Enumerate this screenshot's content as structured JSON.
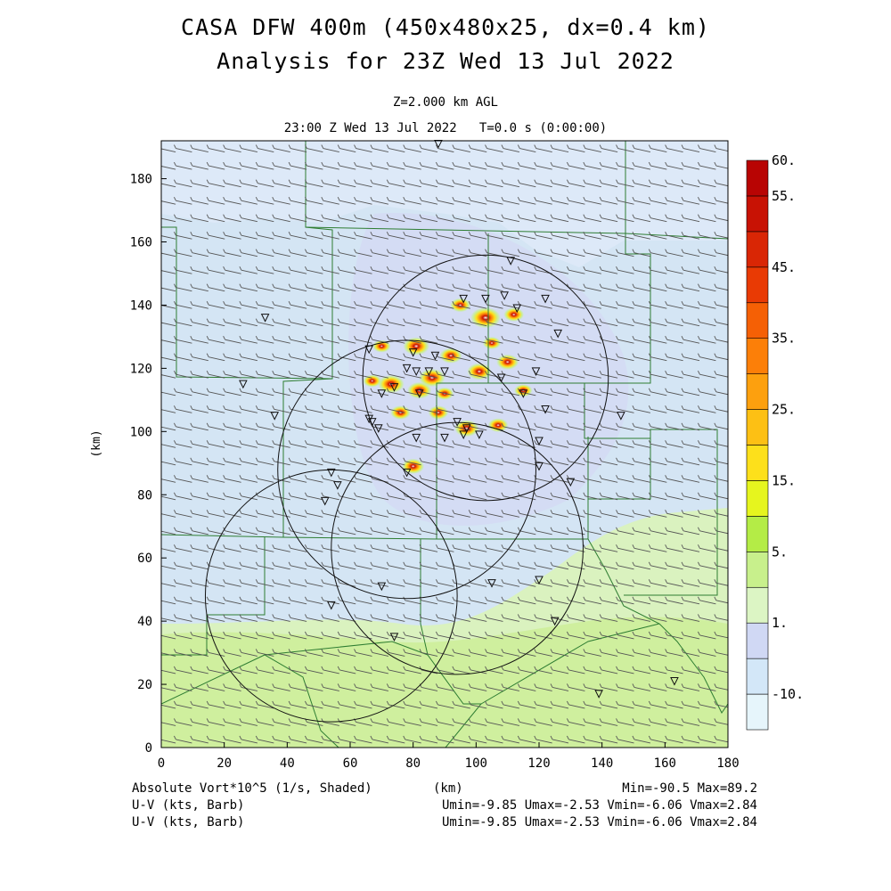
{
  "header": {
    "title_line1": "CASA DFW 400m (450x480x25, dx=0.4 km)",
    "title_line2": "Analysis for 23Z Wed 13 Jul 2022",
    "level": "Z=2.000 km AGL",
    "time_info": "23:00 Z Wed 13 Jul 2022   T=0.0 s (0:00:00)"
  },
  "axes": {
    "x_ticks": [
      0,
      20,
      40,
      60,
      80,
      100,
      120,
      140,
      160,
      180
    ],
    "y_ticks": [
      0,
      20,
      40,
      60,
      80,
      100,
      120,
      140,
      160,
      180
    ],
    "x_label": "(km)",
    "y_label": "(km)",
    "x_range": [
      0,
      180
    ],
    "y_range": [
      0,
      192
    ]
  },
  "colorbar": {
    "labels": [
      "60.",
      "55.",
      "45.",
      "35.",
      "25.",
      "15.",
      "5.",
      "1.",
      "-10."
    ],
    "colors": [
      "#e6f5fb",
      "#d3e7f8",
      "#d0d8f4",
      "#dcf5c4",
      "#c8f08c",
      "#b4ec46",
      "#e6f51e",
      "#fde01b",
      "#fdc014",
      "#fda00e",
      "#fc7f08",
      "#f56005",
      "#e93a04",
      "#d92605",
      "#c81204",
      "#b80403"
    ]
  },
  "footer": {
    "left1": "Absolute Vort*10^5 (1/s, Shaded)",
    "mid1": "(km)",
    "right1": "Min=-90.5 Max=89.2",
    "left2": "U-V (kts, Barb)",
    "right2": "Umin=-9.85 Umax=-2.53 Vmin=-6.06 Vmax=2.84",
    "left3": "U-V (kts, Barb)",
    "right3": "Umin=-9.85 Umax=-2.53 Vmin=-6.06 Vmax=2.84"
  },
  "stats": {
    "min": -90.5,
    "max": 89.2,
    "umin": -9.85,
    "umax": -2.53,
    "vmin": -6.06,
    "vmax": 2.84
  },
  "map": {
    "radar_circles": [
      {
        "cx": 103,
        "cy": 117,
        "r": 39
      },
      {
        "cx": 78,
        "cy": 88,
        "r": 41
      },
      {
        "cx": 94,
        "cy": 63,
        "r": 40
      },
      {
        "cx": 54,
        "cy": 48,
        "r": 40
      }
    ],
    "stations": [
      [
        88,
        191
      ],
      [
        111,
        154
      ],
      [
        103,
        142
      ],
      [
        96,
        142
      ],
      [
        109,
        143
      ],
      [
        113,
        139
      ],
      [
        122,
        142
      ],
      [
        126,
        131
      ],
      [
        33,
        136
      ],
      [
        66,
        126
      ],
      [
        80,
        125
      ],
      [
        87,
        124
      ],
      [
        78,
        120
      ],
      [
        81,
        119
      ],
      [
        85,
        119
      ],
      [
        90,
        119
      ],
      [
        119,
        119
      ],
      [
        108,
        117
      ],
      [
        74,
        114
      ],
      [
        70,
        112
      ],
      [
        82,
        112
      ],
      [
        115,
        112
      ],
      [
        26,
        115
      ],
      [
        122,
        107
      ],
      [
        36,
        105
      ],
      [
        66,
        104
      ],
      [
        67,
        103
      ],
      [
        69,
        101
      ],
      [
        94,
        103
      ],
      [
        97,
        101
      ],
      [
        81,
        98
      ],
      [
        90,
        98
      ],
      [
        120,
        97
      ],
      [
        146,
        105
      ],
      [
        120,
        89
      ],
      [
        78,
        87
      ],
      [
        130,
        84
      ],
      [
        54,
        87
      ],
      [
        56,
        83
      ],
      [
        52,
        78
      ],
      [
        120,
        53
      ],
      [
        105,
        52
      ],
      [
        70,
        51
      ],
      [
        54,
        45
      ],
      [
        125,
        40
      ],
      [
        74,
        35
      ],
      [
        139,
        17
      ],
      [
        163,
        21
      ],
      [
        101,
        99
      ],
      [
        96,
        99
      ]
    ],
    "vort_hotspots": [
      [
        103,
        136,
        3
      ],
      [
        81,
        127,
        2.6
      ],
      [
        73,
        115,
        2.6
      ],
      [
        82,
        113,
        2.4
      ],
      [
        86,
        117,
        2.6
      ],
      [
        97,
        101,
        2.4
      ],
      [
        101,
        119,
        2.4
      ],
      [
        110,
        122,
        2.2
      ],
      [
        92,
        124,
        2.2
      ],
      [
        80,
        89,
        2.2
      ],
      [
        95,
        140,
        2.0
      ],
      [
        112,
        137,
        2.0
      ],
      [
        76,
        106,
        2.0
      ],
      [
        88,
        106,
        2.0
      ],
      [
        107,
        102,
        2.0
      ],
      [
        115,
        113,
        1.8
      ],
      [
        67,
        116,
        1.8
      ],
      [
        70,
        127,
        1.8
      ],
      [
        105,
        128,
        1.8
      ],
      [
        90,
        112,
        1.8
      ]
    ]
  }
}
